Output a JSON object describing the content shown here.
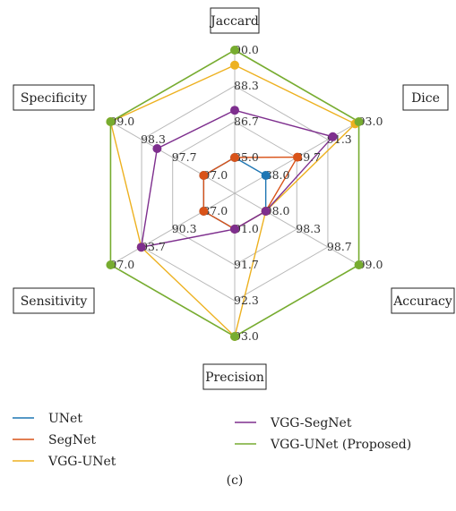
{
  "caption": "(c)",
  "chart_data": {
    "type": "radar",
    "axes": [
      "Jaccard",
      "Dice",
      "Accuracy",
      "Precision",
      "Sensitivity",
      "Specificity"
    ],
    "axis_ticks": [
      [
        "85.0",
        "86.7",
        "88.3",
        "90.0"
      ],
      [
        "88.0",
        "89.7",
        "91.3",
        "93.0"
      ],
      [
        "98.0",
        "98.3",
        "98.7",
        "99.0"
      ],
      [
        "91.0",
        "91.7",
        "92.3",
        "93.0"
      ],
      [
        "87.0",
        "90.3",
        "93.7",
        "97.0"
      ],
      [
        "97.0",
        "97.7",
        "98.3",
        "99.0"
      ]
    ],
    "axis_ranges": [
      [
        85.0,
        90.0
      ],
      [
        88.0,
        93.0
      ],
      [
        98.0,
        99.0
      ],
      [
        91.0,
        93.0
      ],
      [
        87.0,
        97.0
      ],
      [
        97.0,
        99.0
      ]
    ],
    "series": [
      {
        "name": "UNet",
        "color": "#1f77b4",
        "values": [
          85.0,
          88.0,
          98.0,
          91.0,
          87.0,
          97.0
        ]
      },
      {
        "name": "SegNet",
        "color": "#d95319",
        "values": [
          85.0,
          89.7,
          98.0,
          91.0,
          87.0,
          97.0
        ]
      },
      {
        "name": "VGG-UNet",
        "color": "#edb120",
        "values": [
          89.3,
          92.8,
          98.0,
          93.0,
          93.7,
          99.0
        ]
      },
      {
        "name": "VGG-SegNet",
        "color": "#7e2f8e",
        "values": [
          87.2,
          91.6,
          98.0,
          91.0,
          93.7,
          98.0
        ]
      },
      {
        "name": "VGG-UNet (Proposed)",
        "color": "#77ac30",
        "values": [
          90.0,
          93.0,
          99.0,
          93.0,
          97.0,
          99.0
        ]
      }
    ],
    "grid": true,
    "legend_position": "bottom"
  }
}
